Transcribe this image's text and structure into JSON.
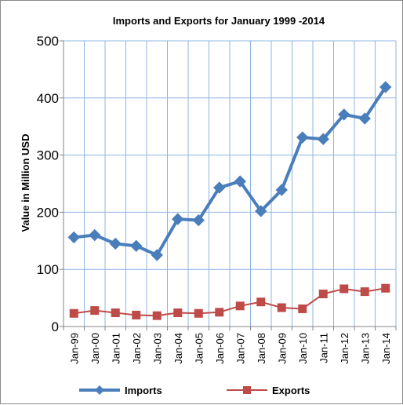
{
  "chart_data": {
    "type": "line",
    "title": "Imports and Exports for January 1999 -2014",
    "xlabel": "",
    "ylabel": "Value in  Million  USD",
    "ylim": [
      0,
      500
    ],
    "yticks": [
      "0",
      "100",
      "200",
      "300",
      "400",
      "500"
    ],
    "grid": true,
    "legend_position": "bottom",
    "categories": [
      "Jan-99",
      "Jan-00",
      "Jan-01",
      "Jan-02",
      "Jan-03",
      "Jan-04",
      "Jan-05",
      "Jan-06",
      "Jan-07",
      "Jan-08",
      "Jan-09",
      "Jan-10",
      "Jan-11",
      "Jan-12",
      "Jan-13",
      "Jan-14"
    ],
    "series": [
      {
        "name": "Imports",
        "color": "#4a7ebb",
        "marker": "diamond",
        "values": [
          156,
          160,
          145,
          141,
          125,
          188,
          186,
          243,
          254,
          202,
          239,
          331,
          328,
          371,
          364,
          419
        ]
      },
      {
        "name": "Exports",
        "color": "#be4b48",
        "marker": "square",
        "values": [
          23,
          28,
          24,
          20,
          19,
          24,
          23,
          25,
          36,
          43,
          33,
          31,
          57,
          66,
          61,
          67
        ]
      }
    ]
  }
}
